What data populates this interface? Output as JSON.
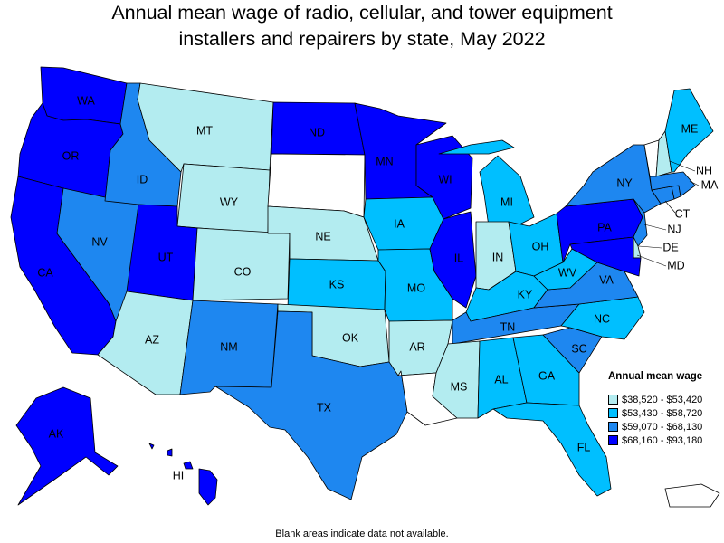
{
  "title_line1": "Annual mean wage of radio, cellular, and tower equipment",
  "title_line2": "installers and repairers by state, May 2022",
  "colors": {
    "tier1": "#b3ecf0",
    "tier2": "#00bfff",
    "tier3": "#1e87f0",
    "tier4": "#0000ff",
    "blank": "#ffffff"
  },
  "legend": {
    "title": "Annual mean wage",
    "items": [
      {
        "range": "$38,520 - $53,420",
        "tier": "tier1"
      },
      {
        "range": "$53,430 - $58,720",
        "tier": "tier2"
      },
      {
        "range": "$59,070 - $68,130",
        "tier": "tier3"
      },
      {
        "range": "$68,160 - $93,180",
        "tier": "tier4"
      }
    ]
  },
  "footnote": "Blank areas indicate data not available.",
  "states": {
    "WA": "tier4",
    "OR": "tier4",
    "CA": "tier4",
    "NV": "tier3",
    "ID": "tier3",
    "MT": "tier1",
    "WY": "tier1",
    "UT": "tier4",
    "CO": "tier1",
    "AZ": "tier1",
    "NM": "tier3",
    "ND": "tier4",
    "SD": "blank",
    "NE": "tier1",
    "KS": "tier2",
    "OK": "tier1",
    "TX": "tier3",
    "MN": "tier4",
    "IA": "tier2",
    "MO": "tier2",
    "AR": "tier1",
    "LA": "blank",
    "WI": "tier4",
    "IL": "tier4",
    "MI": "tier2",
    "IN": "tier1",
    "OH": "tier2",
    "KY": "tier2",
    "TN": "tier3",
    "MS": "tier1",
    "AL": "tier2",
    "GA": "tier2",
    "FL": "tier2",
    "SC": "tier3",
    "NC": "tier2",
    "VA": "tier3",
    "WV": "tier2",
    "PA": "tier4",
    "NY": "tier3",
    "ME": "tier2",
    "VT": "blank",
    "NH": "tier1",
    "MA": "tier3",
    "CT": "tier3",
    "RI": "tier3",
    "NJ": "tier3",
    "DE": "tier1",
    "MD": "tier4",
    "DC": "tier4",
    "AK": "tier4",
    "HI": "tier4",
    "PR": "blank"
  }
}
